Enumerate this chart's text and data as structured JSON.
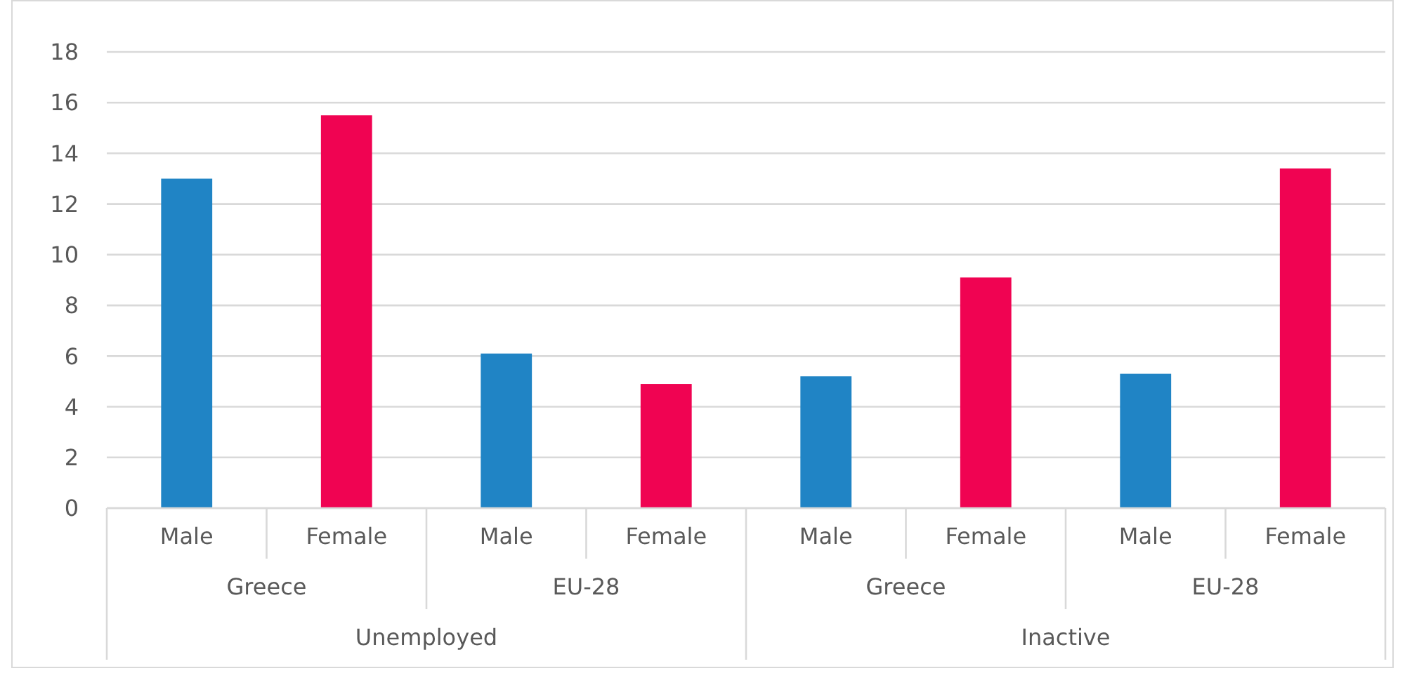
{
  "chart_data": {
    "type": "bar",
    "categories": [
      "Male",
      "Female",
      "Male",
      "Female",
      "Male",
      "Female",
      "Male",
      "Female"
    ],
    "values": [
      13.0,
      15.5,
      6.1,
      4.9,
      5.2,
      9.1,
      5.3,
      13.4
    ],
    "colors": [
      "#2084c5",
      "#f00352",
      "#2084c5",
      "#f00352",
      "#2084c5",
      "#f00352",
      "#2084c5",
      "#f00352"
    ],
    "annotations": [
      "Greece",
      "EU-28",
      "Greece",
      "EU-28",
      "Unemployed",
      "Inactive"
    ],
    "ylim": [
      0,
      18
    ],
    "yticks": [
      0,
      2,
      4,
      6,
      8,
      10,
      12,
      14,
      16,
      18
    ],
    "grid": "y"
  }
}
